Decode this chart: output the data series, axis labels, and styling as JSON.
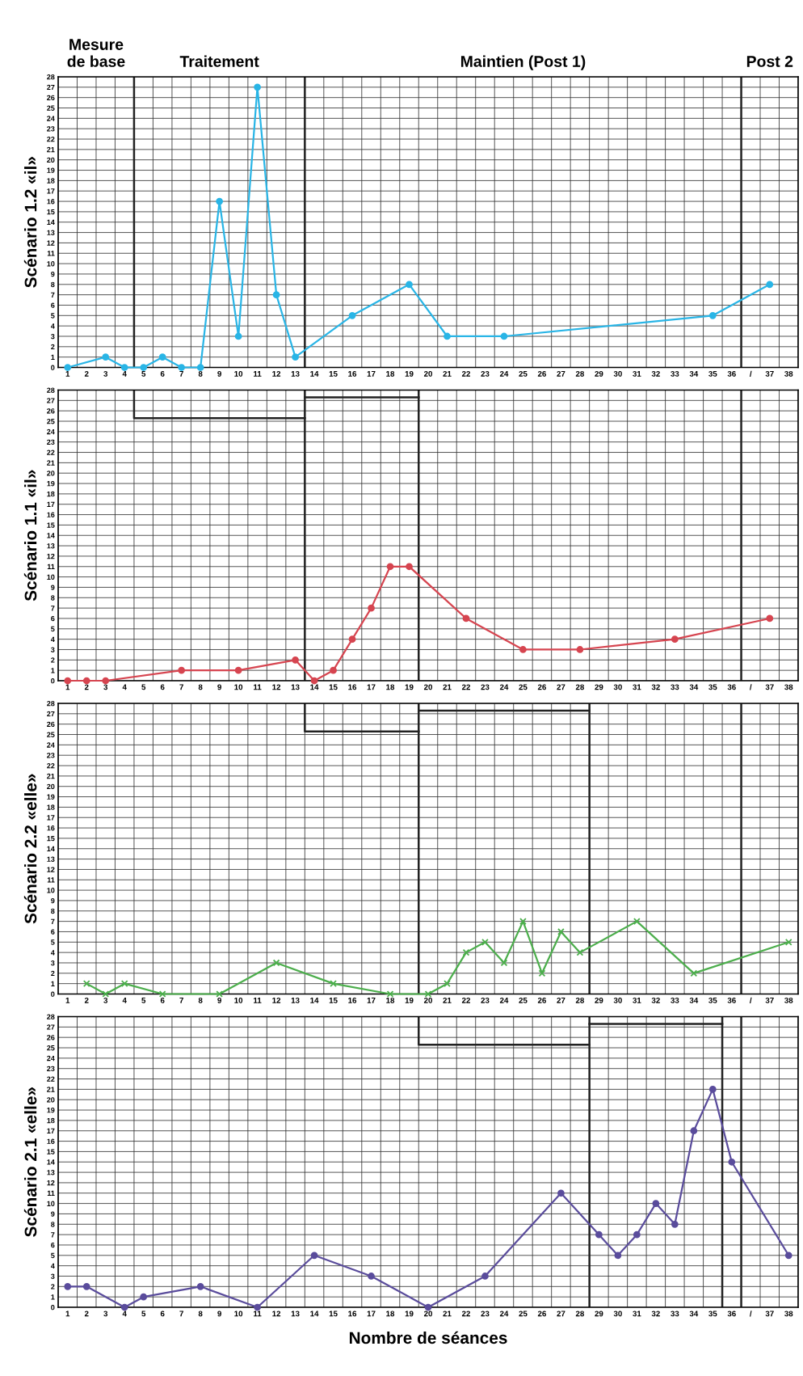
{
  "chart_data": [
    {
      "type": "line",
      "ylabel": "Scénario 1.2 «il»",
      "annotations": [
        "Mesure\nde base",
        "Traitement",
        "Maintien (Post 1)",
        "Post 2"
      ],
      "categories": [
        "1",
        "2",
        "3",
        "4",
        "5",
        "6",
        "7",
        "8",
        "9",
        "10",
        "11",
        "12",
        "13",
        "14",
        "15",
        "16",
        "17",
        "18",
        "19",
        "20",
        "21",
        "22",
        "23",
        "24",
        "25",
        "26",
        "27",
        "28",
        "29",
        "30",
        "31",
        "32",
        "33",
        "34",
        "35",
        "36",
        "/",
        "37",
        "38"
      ],
      "series": [
        {
          "color": "#29b5e6",
          "x": [
            "1",
            "3",
            "4",
            "5",
            "6",
            "7",
            "8",
            "9",
            "10",
            "11",
            "12",
            "13",
            "16",
            "19",
            "21",
            "24",
            "35",
            "37"
          ],
          "values": [
            0,
            1,
            0,
            0,
            1,
            0,
            0,
            16,
            3,
            27,
            7,
            1,
            5,
            8,
            3,
            3,
            5,
            8
          ]
        }
      ],
      "ylim": [
        0,
        28
      ],
      "yticks": [
        0,
        1,
        2,
        3,
        4,
        5,
        6,
        7,
        8,
        9,
        10,
        11,
        12,
        13,
        14,
        15,
        16,
        17,
        18,
        19,
        20,
        21,
        22,
        23,
        24,
        25,
        26,
        27,
        28
      ],
      "grid": true,
      "line_style": "solid",
      "marker": "circle"
    },
    {
      "type": "line",
      "ylabel": "Scénario 1.1 «il»",
      "categories": [
        "1",
        "2",
        "3",
        "4",
        "5",
        "6",
        "7",
        "8",
        "9",
        "10",
        "11",
        "12",
        "13",
        "14",
        "15",
        "16",
        "17",
        "18",
        "19",
        "20",
        "21",
        "22",
        "23",
        "24",
        "25",
        "26",
        "27",
        "28",
        "29",
        "30",
        "31",
        "32",
        "33",
        "34",
        "35",
        "36",
        "/",
        "37",
        "38"
      ],
      "series": [
        {
          "color": "#d64550",
          "x": [
            "1",
            "2",
            "3",
            "7",
            "10",
            "13",
            "14",
            "15",
            "16",
            "17",
            "18",
            "19",
            "22",
            "25",
            "28",
            "33",
            "37"
          ],
          "values": [
            0,
            0,
            0,
            1,
            1,
            2,
            0,
            1,
            4,
            7,
            11,
            11,
            6,
            3,
            3,
            4,
            6
          ]
        }
      ],
      "ylim": [
        0,
        28
      ],
      "yticks": [
        0,
        1,
        2,
        3,
        4,
        5,
        6,
        7,
        8,
        9,
        10,
        11,
        12,
        13,
        14,
        15,
        16,
        17,
        18,
        19,
        20,
        21,
        22,
        23,
        24,
        25,
        26,
        27,
        28
      ],
      "grid": true,
      "line_style": "solid",
      "marker": "circle"
    },
    {
      "type": "line",
      "ylabel": "Scénario 2.2 «elle»",
      "categories": [
        "1",
        "2",
        "3",
        "4",
        "5",
        "6",
        "7",
        "8",
        "9",
        "10",
        "11",
        "12",
        "13",
        "14",
        "15",
        "16",
        "17",
        "18",
        "19",
        "20",
        "21",
        "22",
        "23",
        "24",
        "25",
        "26",
        "27",
        "28",
        "29",
        "30",
        "31",
        "32",
        "33",
        "34",
        "35",
        "36",
        "/",
        "37",
        "38"
      ],
      "series": [
        {
          "color": "#4cae4c",
          "x": [
            "2",
            "3",
            "4",
            "6",
            "9",
            "12",
            "15",
            "18",
            "20",
            "21",
            "22",
            "23",
            "24",
            "25",
            "26",
            "27",
            "28",
            "31",
            "34",
            "38"
          ],
          "values": [
            1,
            0,
            1,
            0,
            0,
            3,
            1,
            0,
            0,
            1,
            4,
            5,
            3,
            7,
            2,
            6,
            4,
            7,
            2,
            5
          ]
        }
      ],
      "ylim": [
        0,
        28
      ],
      "yticks": [
        0,
        1,
        2,
        3,
        4,
        5,
        6,
        7,
        8,
        9,
        10,
        11,
        12,
        13,
        14,
        15,
        16,
        17,
        18,
        19,
        20,
        21,
        22,
        23,
        24,
        25,
        26,
        27,
        28
      ],
      "grid": true,
      "line_style": "solid",
      "marker": "cross"
    },
    {
      "type": "line",
      "ylabel": "Scénario 2.1 «elle»",
      "xlabel": "Nombre de séances",
      "categories": [
        "1",
        "2",
        "3",
        "4",
        "5",
        "6",
        "7",
        "8",
        "9",
        "10",
        "11",
        "12",
        "13",
        "14",
        "15",
        "16",
        "17",
        "18",
        "19",
        "20",
        "21",
        "22",
        "23",
        "24",
        "25",
        "26",
        "27",
        "28",
        "29",
        "30",
        "31",
        "32",
        "33",
        "34",
        "35",
        "36",
        "/",
        "37",
        "38"
      ],
      "series": [
        {
          "color": "#5a4c9c",
          "x": [
            "1",
            "2",
            "4",
            "5",
            "8",
            "11",
            "14",
            "17",
            "20",
            "23",
            "27",
            "29",
            "30",
            "31",
            "32",
            "33",
            "34",
            "35",
            "36",
            "38"
          ],
          "values": [
            2,
            2,
            0,
            1,
            2,
            0,
            5,
            3,
            0,
            3,
            11,
            7,
            5,
            7,
            10,
            8,
            17,
            21,
            14,
            5
          ]
        }
      ],
      "ylim": [
        0,
        28
      ],
      "yticks": [
        0,
        1,
        2,
        3,
        4,
        5,
        6,
        7,
        8,
        9,
        10,
        11,
        12,
        13,
        14,
        15,
        16,
        17,
        18,
        19,
        20,
        21,
        22,
        23,
        24,
        25,
        26,
        27,
        28
      ],
      "grid": true,
      "line_style": "solid",
      "marker": "circle"
    }
  ]
}
